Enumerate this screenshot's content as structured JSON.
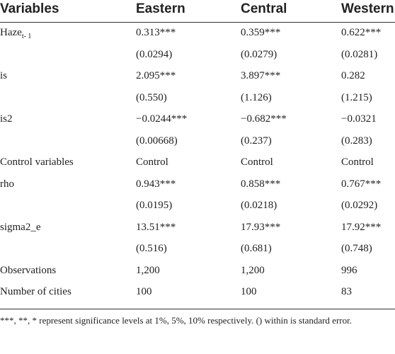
{
  "table": {
    "header": [
      "Variables",
      "Eastern",
      "Central",
      "Western"
    ],
    "rows": [
      [
        {
          "main": "Haze",
          "sub": "t- 1"
        },
        "0.313***",
        "0.359***",
        "0.622***"
      ],
      [
        null,
        "(0.0294)",
        "(0.0279)",
        "(0.0281)"
      ],
      [
        "is",
        "2.095***",
        "3.897***",
        "0.282"
      ],
      [
        null,
        "(0.550)",
        "(1.126)",
        "(1.215)"
      ],
      [
        "is2",
        "−0.0244***",
        "−0.682***",
        "−0.0321"
      ],
      [
        null,
        "(0.00668)",
        "(0.237)",
        "(0.283)"
      ],
      [
        "Control variables",
        "Control",
        "Control",
        "Control"
      ],
      [
        "rho",
        "0.943***",
        "0.858***",
        "0.767***"
      ],
      [
        null,
        "(0.0195)",
        "(0.0218)",
        "(0.0292)"
      ],
      [
        "sigma2_e",
        "13.51***",
        "17.93***",
        "17.92***"
      ],
      [
        null,
        "(0.516)",
        "(0.681)",
        "(0.748)"
      ],
      [
        "Observations",
        "1,200",
        "1,200",
        "996"
      ],
      [
        "Number of cities",
        "100",
        "100",
        "83"
      ]
    ],
    "note": "***, **, * represent significance levels at 1%, 5%, 10% respectively. () within is standard error."
  }
}
